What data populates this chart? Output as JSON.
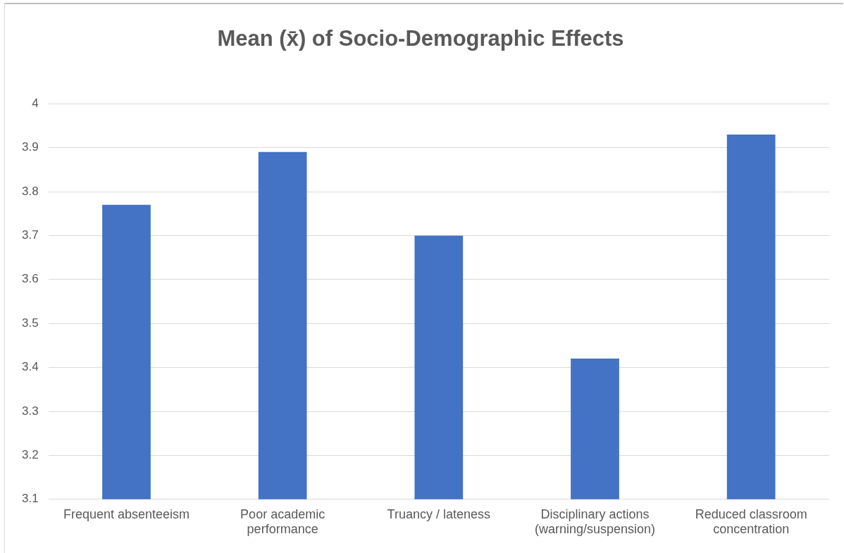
{
  "chart_data": {
    "type": "bar",
    "title": "Mean (x̄) of Socio-Demographic Effects",
    "categories": [
      "Frequent absenteeism",
      "Poor academic performance",
      "Truancy / lateness",
      "Disciplinary actions (warning/suspension)",
      "Reduced classroom concentration"
    ],
    "values": [
      3.77,
      3.89,
      3.7,
      3.42,
      3.93
    ],
    "color": "#4472c4",
    "ylim": [
      3.1,
      4
    ],
    "yticks": [
      3.1,
      3.2,
      3.3,
      3.4,
      3.5,
      3.6,
      3.7,
      3.8,
      3.9,
      4
    ],
    "grid": "y",
    "legend": false
  }
}
